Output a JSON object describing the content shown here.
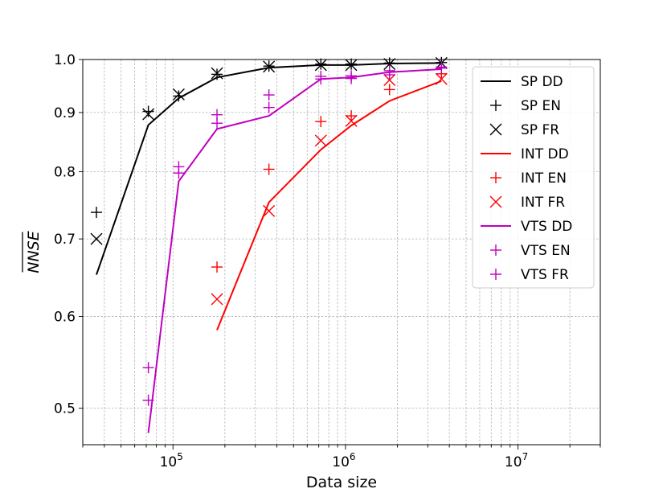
{
  "chart_data": {
    "type": "line",
    "title": "",
    "xlabel": "Data size",
    "ylabel": "NNSE",
    "xscale": "log",
    "yscale": "log",
    "xlim": [
      30000,
      30000000
    ],
    "ylim": [
      0.465,
      1.0
    ],
    "x_ticks": [
      {
        "value": 100000,
        "base": "10",
        "exp": "5"
      },
      {
        "value": 1000000,
        "base": "10",
        "exp": "6"
      },
      {
        "value": 10000000,
        "base": "10",
        "exp": "7"
      }
    ],
    "y_ticks": [
      {
        "value": 0.5,
        "label": "0.5"
      },
      {
        "value": 0.6,
        "label": "0.6"
      },
      {
        "value": 0.7,
        "label": "0.7"
      },
      {
        "value": 0.8,
        "label": "0.8"
      },
      {
        "value": 0.9,
        "label": "0.9"
      },
      {
        "value": 1.0,
        "label": "1.0"
      }
    ],
    "grid": true,
    "legend_position": "top-right",
    "series": [
      {
        "name": "SP DD",
        "style": "line",
        "color": "#000000",
        "x": [
          36000,
          72000,
          108000,
          180000,
          360000,
          720000,
          1080000,
          1800000,
          3600000
        ],
        "y": [
          0.652,
          0.878,
          0.926,
          0.965,
          0.984,
          0.989,
          0.989,
          0.992,
          0.993
        ]
      },
      {
        "name": "SP EN",
        "style": "plus",
        "color": "#000000",
        "x": [
          36000,
          72000,
          108000,
          180000,
          360000,
          720000,
          1080000,
          1800000,
          3600000
        ],
        "y": [
          0.738,
          0.902,
          0.93,
          0.971,
          0.987,
          0.991,
          0.991,
          0.993,
          0.994
        ]
      },
      {
        "name": "SP FR",
        "style": "x",
        "color": "#000000",
        "x": [
          36000,
          72000,
          108000,
          180000,
          360000,
          720000,
          1080000,
          1800000,
          3600000
        ],
        "y": [
          0.7,
          0.897,
          0.933,
          0.973,
          0.986,
          0.989,
          0.989,
          0.991,
          0.993
        ]
      },
      {
        "name": "INT DD",
        "style": "line",
        "color": "#ff0000",
        "x": [
          180000,
          360000,
          720000,
          1080000,
          1800000,
          3600000
        ],
        "y": [
          0.584,
          0.753,
          0.836,
          0.877,
          0.921,
          0.958
        ]
      },
      {
        "name": "INT EN",
        "style": "plus",
        "color": "#ff0000",
        "x": [
          180000,
          360000,
          720000,
          1080000,
          1800000,
          3600000
        ],
        "y": [
          0.662,
          0.804,
          0.884,
          0.894,
          0.942,
          0.972
        ]
      },
      {
        "name": "INT FR",
        "style": "x",
        "color": "#ff0000",
        "x": [
          180000,
          360000,
          720000,
          1080000,
          1800000,
          3600000
        ],
        "y": [
          0.621,
          0.74,
          0.851,
          0.885,
          0.96,
          0.962
        ]
      },
      {
        "name": "VTS DD",
        "style": "line",
        "color": "#bf00bf",
        "x": [
          72000,
          108000,
          180000,
          360000,
          720000,
          1080000,
          1800000,
          3600000
        ],
        "y": [
          0.476,
          0.785,
          0.871,
          0.894,
          0.962,
          0.965,
          0.975,
          0.981
        ]
      },
      {
        "name": "VTS EN",
        "style": "plus",
        "color": "#bf00bf",
        "x": [
          72000,
          108000,
          180000,
          360000,
          720000,
          1080000,
          1800000,
          3600000
        ],
        "y": [
          0.508,
          0.808,
          0.896,
          0.932,
          0.967,
          0.968,
          0.978,
          0.985
        ]
      },
      {
        "name": "VTS FR",
        "style": "plus",
        "color": "#bf00bf",
        "x": [
          72000,
          108000,
          180000,
          360000,
          720000,
          1080000,
          1800000,
          3600000
        ],
        "y": [
          0.542,
          0.798,
          0.881,
          0.909,
          0.962,
          0.963,
          0.97,
          0.983
        ]
      }
    ]
  }
}
